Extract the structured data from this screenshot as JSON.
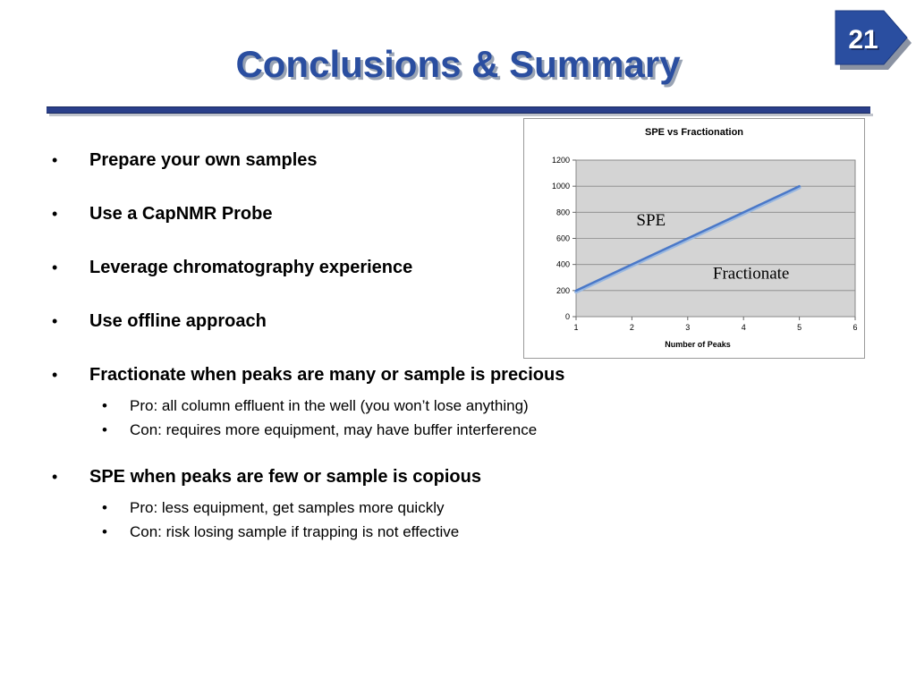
{
  "slide": {
    "title": "Conclusions & Summary",
    "page_number": "21",
    "accent_color": "#2a4ea0"
  },
  "bullets": [
    {
      "text": "Prepare your own samples",
      "subs": []
    },
    {
      "text": "Use a CapNMR Probe",
      "subs": []
    },
    {
      "text": "Leverage chromatography experience",
      "subs": []
    },
    {
      "text": "Use offline approach",
      "subs": []
    },
    {
      "text": "Fractionate when peaks are many or sample is precious",
      "subs": [
        "Pro:  all column effluent in the well (you won’t lose anything)",
        "Con:  requires more equipment, may have buffer interference"
      ]
    },
    {
      "text": "SPE when peaks are few or sample is copious",
      "subs": [
        "Pro:  less equipment, get samples more quickly",
        "Con:  risk losing sample if trapping is not effective"
      ]
    }
  ],
  "bullet_glyph": "•",
  "chart_data": {
    "type": "line",
    "title": "SPE vs Fractionation",
    "xlabel": "Number of Peaks",
    "ylabel": "",
    "xlim": [
      1,
      6
    ],
    "ylim": [
      0,
      1200
    ],
    "xticks": [
      1,
      2,
      3,
      4,
      5,
      6
    ],
    "yticks": [
      0,
      200,
      400,
      600,
      800,
      1000,
      1200
    ],
    "grid": true,
    "plot_background": "#d4d4d4",
    "series": [
      {
        "name": "SPE",
        "color": "#4a78c8",
        "x": [
          1,
          2,
          3,
          4,
          5
        ],
        "y": [
          200,
          400,
          600,
          800,
          1000
        ]
      },
      {
        "name": "Fractionate",
        "color": "#9ab8e0",
        "x": [
          1,
          2,
          3,
          4,
          5
        ],
        "y": [
          190,
          390,
          590,
          790,
          990
        ]
      }
    ],
    "annotations": [
      {
        "text": "SPE",
        "x": 2.08,
        "y": 700
      },
      {
        "text": "Fractionate",
        "x": 3.45,
        "y": 290
      }
    ]
  }
}
